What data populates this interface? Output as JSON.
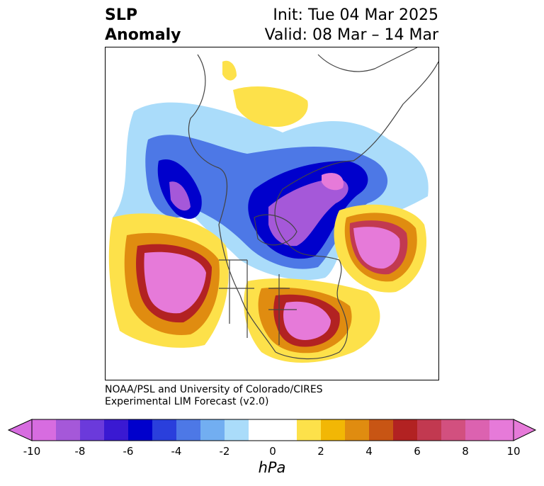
{
  "title": {
    "left_line1": "SLP",
    "left_line2": "Anomaly",
    "init": "Init: Tue 04 Mar 2025",
    "valid": "Valid: 08 Mar – 14 Mar"
  },
  "credit": {
    "line1": "NOAA/PSL and University of Colorado/CIRES",
    "line2": "Experimental LIM Forecast (v2.0)"
  },
  "colorbar": {
    "unit": "hPa",
    "ticks": [
      "-10",
      "-8",
      "-6",
      "-4",
      "-2",
      "0",
      "2",
      "4",
      "6",
      "8",
      "10"
    ],
    "colors": [
      "#d76ce0",
      "#a558d9",
      "#6b3adb",
      "#3a19d2",
      "#0000cc",
      "#2a3fdc",
      "#4d78e6",
      "#72aef1",
      "#aadcfa",
      "#ffffff",
      "#ffffff",
      "#fde14a",
      "#f2b705",
      "#e08c10",
      "#c85514",
      "#b22222",
      "#c23950",
      "#d2507f",
      "#dc62b0",
      "#e67ad9"
    ],
    "extend_low_color": "#d76ce0",
    "extend_high_color": "#e67ad9"
  },
  "map": {
    "projection": "north-polar-stereographic",
    "variable": "sea-level-pressure-anomaly"
  }
}
